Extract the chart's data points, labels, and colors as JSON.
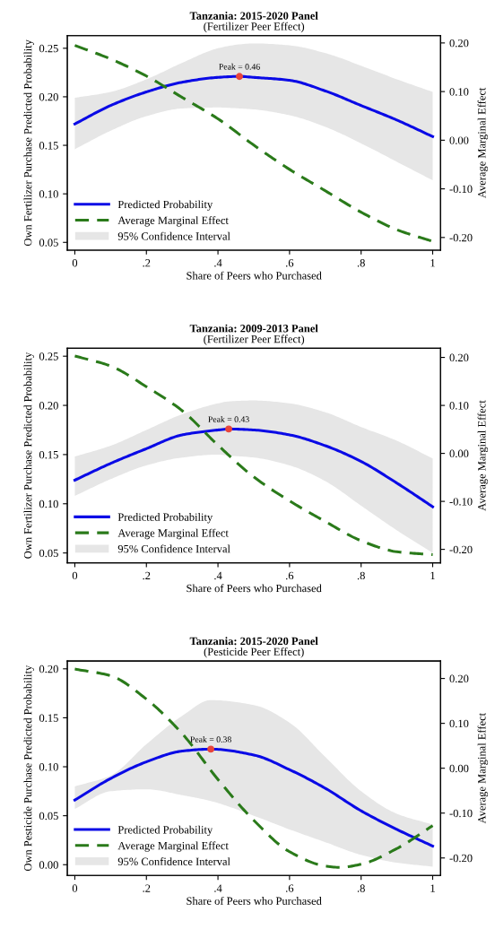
{
  "chart_data": [
    {
      "type": "line",
      "title": "Tanzania: 2015-2020 Panel",
      "subtitle": "(Fertilizer Peer Effect)",
      "xlabel": "Share of Peers who Purchased",
      "ylabel": "Own Fertilizer Purchase Predicted Probability",
      "y2label": "Average Marginal Effect",
      "xlim": [
        -0.021,
        1.022
      ],
      "xticks": [
        0,
        {
          "value": 0.2,
          "label": ".2"
        },
        {
          "value": 0.4,
          "label": ".4"
        },
        {
          "value": 0.6,
          "label": ".6"
        },
        {
          "value": 0.8,
          "label": ".8"
        },
        1
      ],
      "ylim": [
        0.042,
        0.263
      ],
      "yticks": [
        {
          "value": 0.05,
          "label": "0.05"
        },
        {
          "value": 0.1,
          "label": "0.10"
        },
        {
          "value": 0.15,
          "label": "0.15"
        },
        {
          "value": 0.2,
          "label": "0.20"
        },
        {
          "value": 0.25,
          "label": "0.25"
        }
      ],
      "y2lim": [
        -0.226,
        0.215
      ],
      "y2ticks": [
        {
          "value": -0.2,
          "label": "-0.20"
        },
        {
          "value": -0.1,
          "label": "-0.10"
        },
        {
          "value": 0,
          "label": "0.00"
        },
        {
          "value": 0.1,
          "label": "0.10"
        },
        {
          "value": 0.2,
          "label": "0.20"
        }
      ],
      "legend": "bottom left",
      "grid": false,
      "series": [
        {
          "name": "Predicted Probability",
          "color": "#0a0ae6",
          "line_style": "solid",
          "x": [
            0,
            0.1,
            0.2,
            0.3,
            0.4,
            0.46,
            0.5,
            0.6,
            0.7,
            0.8,
            0.9,
            1
          ],
          "values": [
            0.172,
            0.191,
            0.205,
            0.215,
            0.22,
            0.221,
            0.22,
            0.217,
            0.206,
            0.191,
            0.176,
            0.159
          ],
          "lower": [
            0.146,
            0.165,
            0.18,
            0.188,
            0.189,
            0.188,
            0.187,
            0.181,
            0.169,
            0.152,
            0.133,
            0.114
          ],
          "upper": [
            0.199,
            0.205,
            0.218,
            0.235,
            0.25,
            0.254,
            0.255,
            0.253,
            0.245,
            0.232,
            0.218,
            0.205
          ]
        },
        {
          "name": "Average Marginal Effect",
          "axis": "y2",
          "color": "#2a7a1a",
          "line_style": "dashed",
          "x": [
            0,
            0.1,
            0.2,
            0.3,
            0.4,
            0.5,
            0.6,
            0.7,
            0.8,
            0.9,
            1
          ],
          "values": [
            0.195,
            0.167,
            0.132,
            0.088,
            0.044,
            -0.01,
            -0.06,
            -0.104,
            -0.148,
            -0.184,
            -0.208
          ]
        },
        {
          "type": "scatter",
          "marker": "circle",
          "color": "#e8453c",
          "x": [
            0.46
          ],
          "values": [
            0.221
          ]
        }
      ],
      "annotations": [
        {
          "text": "Peak = 0.46",
          "x": 0.46,
          "y": 0.221
        },
        "95% Confidence Interval"
      ]
    },
    {
      "type": "line",
      "title": "Tanzania: 2009-2013 Panel",
      "subtitle": "(Fertilizer Peer Effect)",
      "xlabel": "Share of Peers who Purchased",
      "ylabel": "Own Fertilizer Purchase Predicted Probability",
      "y2label": "Average Marginal Effect",
      "xlim": [
        -0.021,
        1.022
      ],
      "xticks": [
        0,
        {
          "value": 0.2,
          "label": ".2"
        },
        {
          "value": 0.4,
          "label": ".4"
        },
        {
          "value": 0.6,
          "label": ".6"
        },
        {
          "value": 0.8,
          "label": ".8"
        },
        1
      ],
      "ylim": [
        0.04,
        0.258
      ],
      "yticks": [
        {
          "value": 0.05,
          "label": "0.05"
        },
        {
          "value": 0.1,
          "label": "0.10"
        },
        {
          "value": 0.15,
          "label": "0.15"
        },
        {
          "value": 0.2,
          "label": "0.20"
        },
        {
          "value": 0.25,
          "label": "0.25"
        }
      ],
      "y2lim": [
        -0.228,
        0.219
      ],
      "y2ticks": [
        {
          "value": -0.2,
          "label": "-0.20"
        },
        {
          "value": -0.1,
          "label": "-0.10"
        },
        {
          "value": 0,
          "label": "0.00"
        },
        {
          "value": 0.1,
          "label": "0.10"
        },
        {
          "value": 0.2,
          "label": "0.20"
        }
      ],
      "legend": "bottom left",
      "grid": false,
      "series": [
        {
          "name": "Predicted Probability",
          "color": "#0a0ae6",
          "line_style": "solid",
          "x": [
            0,
            0.1,
            0.2,
            0.3,
            0.4,
            0.43,
            0.5,
            0.6,
            0.7,
            0.8,
            0.9,
            1
          ],
          "values": [
            0.124,
            0.141,
            0.156,
            0.17,
            0.175,
            0.176,
            0.175,
            0.17,
            0.159,
            0.143,
            0.121,
            0.097
          ],
          "lower": [
            0.108,
            0.125,
            0.139,
            0.147,
            0.15,
            0.149,
            0.147,
            0.139,
            0.123,
            0.098,
            0.073,
            0.05
          ],
          "upper": [
            0.148,
            0.159,
            0.175,
            0.191,
            0.202,
            0.204,
            0.205,
            0.202,
            0.193,
            0.178,
            0.164,
            0.146
          ]
        },
        {
          "name": "Average Marginal Effect",
          "axis": "y2",
          "color": "#2a7a1a",
          "line_style": "dashed",
          "x": [
            0,
            0.1,
            0.2,
            0.3,
            0.4,
            0.5,
            0.6,
            0.7,
            0.8,
            0.9,
            1
          ],
          "values": [
            0.203,
            0.182,
            0.139,
            0.089,
            0.017,
            -0.049,
            -0.099,
            -0.142,
            -0.182,
            -0.205,
            -0.211
          ]
        },
        {
          "type": "scatter",
          "marker": "circle",
          "color": "#e8453c",
          "x": [
            0.43
          ],
          "values": [
            0.176
          ]
        }
      ],
      "annotations": [
        {
          "text": "Peak = 0.43",
          "x": 0.43,
          "y": 0.176
        },
        "95% Confidence Interval"
      ]
    },
    {
      "type": "line",
      "title": "Tanzania: 2015-2020 Panel",
      "subtitle": "(Pesticide Peer Effect)",
      "xlabel": "Share of Peers who Purchased",
      "ylabel": "Own Pesticide Purchase Predicted Probability",
      "y2label": "Average Marginal Effect",
      "xlim": [
        -0.021,
        1.022
      ],
      "xticks": [
        0,
        {
          "value": 0.2,
          "label": ".2"
        },
        {
          "value": 0.4,
          "label": ".4"
        },
        {
          "value": 0.6,
          "label": ".6"
        },
        {
          "value": 0.8,
          "label": ".8"
        },
        1
      ],
      "ylim": [
        -0.011,
        0.208
      ],
      "yticks": [
        {
          "value": 0,
          "label": "0.00"
        },
        {
          "value": 0.05,
          "label": "0.05"
        },
        {
          "value": 0.1,
          "label": "0.10"
        },
        {
          "value": 0.15,
          "label": "0.15"
        },
        {
          "value": 0.2,
          "label": "0.20"
        }
      ],
      "y2lim": [
        -0.239,
        0.239
      ],
      "y2ticks": [
        {
          "value": -0.2,
          "label": "-0.20"
        },
        {
          "value": -0.1,
          "label": "-0.10"
        },
        {
          "value": 0,
          "label": "0.00"
        },
        {
          "value": 0.1,
          "label": "0.10"
        },
        {
          "value": 0.2,
          "label": "0.20"
        }
      ],
      "legend": "bottom left",
      "grid": false,
      "series": [
        {
          "name": "Predicted Probability",
          "color": "#0a0ae6",
          "line_style": "solid",
          "x": [
            0,
            0.1,
            0.2,
            0.3,
            0.38,
            0.5,
            0.6,
            0.7,
            0.8,
            0.9,
            1
          ],
          "values": [
            0.066,
            0.088,
            0.105,
            0.116,
            0.118,
            0.112,
            0.097,
            0.078,
            0.055,
            0.036,
            0.019
          ],
          "lower": [
            0.057,
            0.075,
            0.077,
            0.071,
            0.065,
            0.05,
            0.036,
            0.023,
            0.01,
            0.002,
            -0.002
          ],
          "upper": [
            0.08,
            0.091,
            0.123,
            0.152,
            0.168,
            0.163,
            0.145,
            0.11,
            0.075,
            0.052,
            0.041
          ]
        },
        {
          "name": "Average Marginal Effect",
          "axis": "y2",
          "color": "#2a7a1a",
          "line_style": "dashed",
          "x": [
            0,
            0.1,
            0.2,
            0.3,
            0.4,
            0.5,
            0.6,
            0.7,
            0.74,
            0.8,
            0.9,
            1
          ],
          "values": [
            0.221,
            0.206,
            0.154,
            0.077,
            -0.025,
            -0.116,
            -0.186,
            -0.218,
            -0.221,
            -0.214,
            -0.179,
            -0.128
          ]
        },
        {
          "type": "scatter",
          "marker": "circle",
          "color": "#e8453c",
          "x": [
            0.38
          ],
          "values": [
            0.118
          ]
        }
      ],
      "annotations": [
        {
          "text": "Peak = 0.38",
          "x": 0.38,
          "y": 0.118
        },
        "95% Confidence Interval"
      ]
    }
  ]
}
